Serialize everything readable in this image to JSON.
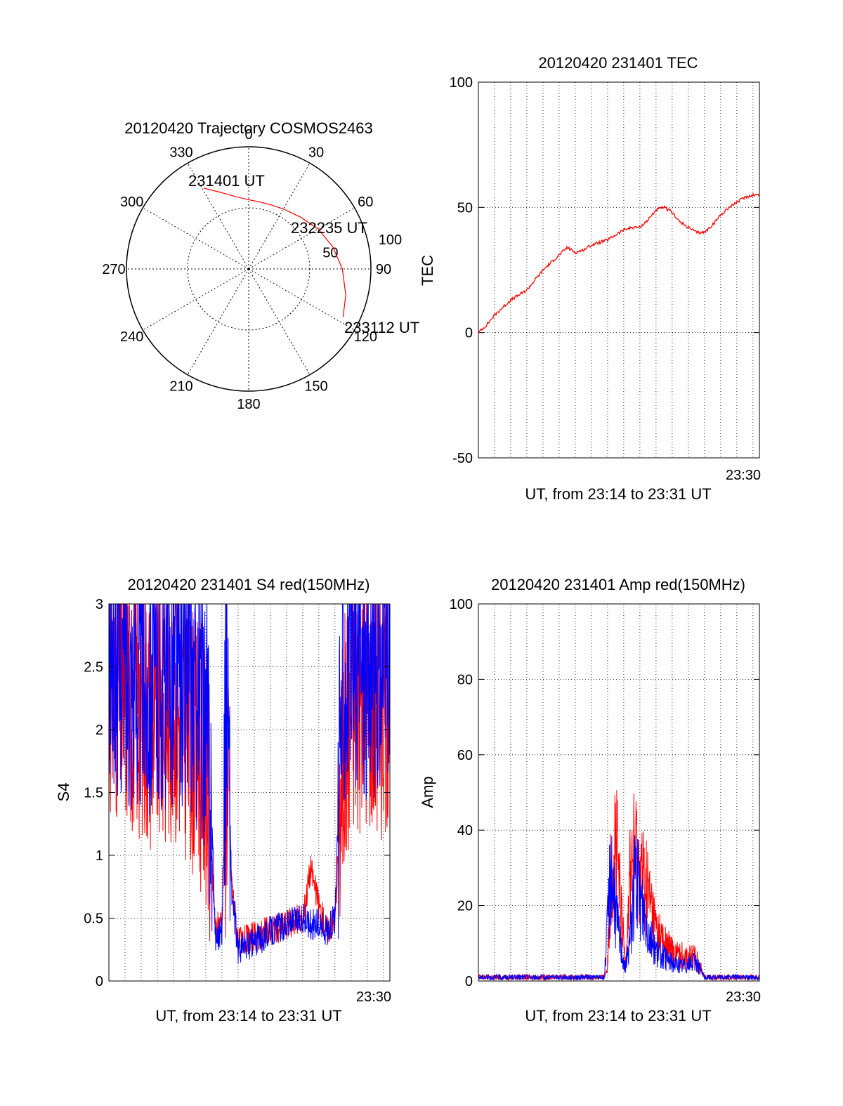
{
  "chart_data": [
    {
      "type": "polar",
      "title": "20120420 Trajectory COSMOS2463",
      "azimuth_labels": [
        "0",
        "30",
        "60",
        "90",
        "120",
        "150",
        "180",
        "210",
        "240",
        "270",
        "300",
        "330"
      ],
      "radial_labels": [
        "50",
        "100"
      ],
      "zenith_range": [
        0,
        100
      ],
      "trajectory": {
        "color": "#ff0000",
        "points": [
          {
            "az": 331,
            "el": 22
          },
          {
            "az": 340,
            "el": 30
          },
          {
            "az": 350,
            "el": 36
          },
          {
            "az": 0,
            "el": 39
          },
          {
            "az": 10,
            "el": 40
          },
          {
            "az": 20,
            "el": 40
          },
          {
            "az": 30,
            "el": 39
          },
          {
            "az": 45,
            "el": 36
          },
          {
            "az": 60,
            "el": 31
          },
          {
            "az": 75,
            "el": 26
          },
          {
            "az": 90,
            "el": 21
          },
          {
            "az": 105,
            "el": 16
          },
          {
            "az": 117,
            "el": 12
          }
        ]
      },
      "annotations": [
        "231401 UT",
        "232235 UT",
        "233112 UT"
      ]
    },
    {
      "type": "line",
      "title": "20120420 231401 TEC",
      "xlabel": "UT, from 23:14 to 23:31 UT",
      "ylabel": "TEC",
      "xlim": [
        0,
        17.4
      ],
      "ylim": [
        -50,
        100
      ],
      "yticks": [
        "100",
        "50",
        "0",
        "-50"
      ],
      "xticks": [
        "23:30"
      ],
      "grid": true,
      "series": [
        {
          "color": "#ff0000",
          "x": [
            0,
            0.5,
            1,
            1.5,
            2,
            2.5,
            3,
            3.5,
            4,
            4.5,
            5,
            5.5,
            6,
            6.5,
            7,
            7.5,
            8,
            8.5,
            9,
            9.5,
            10,
            10.5,
            11,
            11.5,
            12,
            12.5,
            13,
            13.5,
            14,
            14.5,
            15,
            15.5,
            16,
            16.5,
            17,
            17.4
          ],
          "values": [
            0,
            3,
            7,
            10,
            13,
            15,
            17,
            21,
            25,
            28,
            31,
            34,
            32,
            33,
            35,
            36,
            37,
            39,
            41,
            42,
            42,
            45,
            49,
            50,
            48,
            44,
            42,
            40,
            40,
            43,
            47,
            50,
            52,
            54,
            55,
            55
          ]
        }
      ]
    },
    {
      "type": "line",
      "title": "20120420 231401 S4 red(150MHz)",
      "xlabel": "UT, from 23:14 to 23:31 UT",
      "ylabel": "S4",
      "xlim": [
        0,
        17.4
      ],
      "ylim": [
        0,
        3
      ],
      "yticks": [
        "3",
        "2.5",
        "2",
        "1.5",
        "1",
        "0.5",
        "0"
      ],
      "xticks": [
        "23:30"
      ],
      "grid": true,
      "series": [
        {
          "name": "",
          "color": "#ff0000",
          "x": [
            0,
            1,
            2,
            3,
            4,
            5,
            6,
            6.3,
            6.6,
            7,
            7.3,
            7.6,
            8,
            9,
            10,
            11,
            12,
            12.5,
            13,
            13.5,
            14,
            14.5,
            15,
            16,
            17,
            17.4
          ],
          "values": [
            2.4,
            2.3,
            2.2,
            2.1,
            2.2,
            2.0,
            1.7,
            1.1,
            0.4,
            0.5,
            1.7,
            0.8,
            0.3,
            0.35,
            0.4,
            0.45,
            0.5,
            0.9,
            0.6,
            0.4,
            0.5,
            1.8,
            2.2,
            2.3,
            2.2,
            2.4
          ]
        },
        {
          "name": "",
          "color": "#0000ff",
          "x": [
            0,
            1,
            2,
            3,
            4,
            5,
            6,
            6.3,
            6.6,
            7,
            7.3,
            7.6,
            8,
            9,
            10,
            11,
            12,
            12.5,
            13,
            13.5,
            14,
            14.5,
            15,
            16,
            17,
            17.4
          ],
          "values": [
            2.6,
            2.5,
            2.4,
            2.4,
            2.5,
            2.4,
            2.1,
            1.6,
            0.35,
            0.4,
            2.6,
            0.7,
            0.25,
            0.3,
            0.4,
            0.45,
            0.5,
            0.45,
            0.45,
            0.4,
            0.5,
            2.5,
            2.6,
            2.5,
            2.5,
            2.6
          ]
        }
      ]
    },
    {
      "type": "line",
      "title": "20120420 231401 Amp red(150MHz)",
      "xlabel": "UT, from 23:14 to 23:31 UT",
      "ylabel": "Amp",
      "xlim": [
        0,
        17.4
      ],
      "ylim": [
        0,
        100
      ],
      "yticks": [
        "100",
        "80",
        "60",
        "40",
        "20",
        "0"
      ],
      "xticks": [
        "23:30"
      ],
      "grid": true,
      "series": [
        {
          "name": "",
          "color": "#ff0000",
          "x": [
            0,
            2,
            4,
            6,
            7.8,
            8,
            8.2,
            8.5,
            8.8,
            9.1,
            9.4,
            9.7,
            10,
            10.5,
            11,
            11.5,
            12,
            12.5,
            13.5,
            14,
            15,
            16,
            17,
            17.4
          ],
          "values": [
            1,
            1,
            1,
            1,
            1,
            4,
            30,
            38,
            20,
            5,
            30,
            34,
            30,
            24,
            14,
            10,
            8,
            7,
            6,
            1,
            1,
            1,
            1,
            1
          ]
        },
        {
          "name": "",
          "color": "#0000ff",
          "x": [
            0,
            2,
            4,
            6,
            7.8,
            8,
            8.2,
            8.5,
            8.8,
            9.1,
            9.4,
            9.7,
            10,
            10.5,
            11,
            11.5,
            12,
            12.5,
            13.5,
            14,
            15,
            16,
            17,
            17.4
          ],
          "values": [
            1,
            1,
            1,
            1,
            1,
            15,
            32,
            18,
            10,
            3,
            12,
            28,
            22,
            14,
            8,
            6,
            5,
            4,
            5,
            1,
            1,
            1,
            1,
            1
          ]
        }
      ]
    }
  ]
}
